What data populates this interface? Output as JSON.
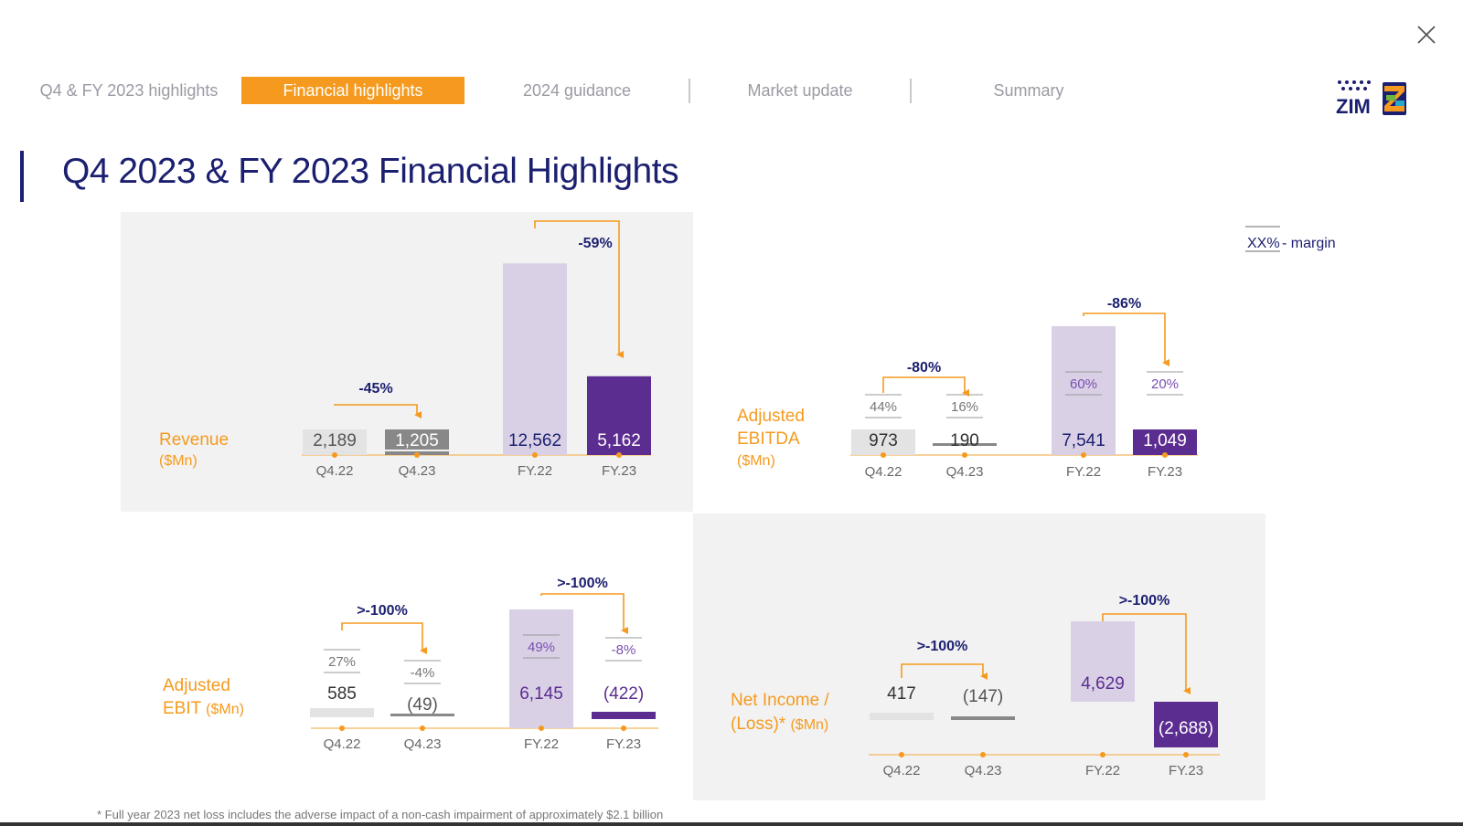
{
  "tabs": [
    {
      "label": "Q4 & FY 2023 highlights",
      "active": false
    },
    {
      "label": "Financial highlights",
      "active": true
    },
    {
      "label": "2024 guidance",
      "active": false
    },
    {
      "label": "Market update",
      "active": false
    },
    {
      "label": "Summary",
      "active": false
    }
  ],
  "logo_text": "ZIM",
  "page_title": "Q4 2023 & FY 2023 Financial Highlights",
  "legend": {
    "xx": "XX%",
    "text": " - margin"
  },
  "footnote": "* Full year 2023 net loss includes the adverse impact of a non-cash impairment of approximately $2.1 billion",
  "colors": {
    "accent_orange": "#f59a1e",
    "navy": "#1b1f6f",
    "purple": "#5c2d91",
    "light_purple": "#d9d0e6",
    "grey": "#888888",
    "light_grey": "#e3e3e3"
  },
  "chart_data": [
    {
      "type": "bar",
      "title": "Revenue",
      "unit": "($Mn)",
      "categories": [
        "Q4.22",
        "Q4.23",
        "FY.22",
        "FY.23"
      ],
      "values": [
        2189,
        1205,
        12562,
        5162
      ],
      "labels": [
        "2,189",
        "1,205",
        "12,562",
        "5,162"
      ],
      "changes": [
        {
          "from": "Q4.22",
          "to": "Q4.23",
          "label": "-45%"
        },
        {
          "from": "FY.22",
          "to": "FY.23",
          "label": "-59%"
        }
      ]
    },
    {
      "type": "bar",
      "title": "Adjusted EBITDA",
      "unit": "($Mn)",
      "categories": [
        "Q4.22",
        "Q4.23",
        "FY.22",
        "FY.23"
      ],
      "values": [
        973,
        190,
        7541,
        1049
      ],
      "labels": [
        "973",
        "190",
        "7,541",
        "1,049"
      ],
      "margins": [
        "44%",
        "16%",
        "60%",
        "20%"
      ],
      "changes": [
        {
          "from": "Q4.22",
          "to": "Q4.23",
          "label": "-80%"
        },
        {
          "from": "FY.22",
          "to": "FY.23",
          "label": "-86%"
        }
      ]
    },
    {
      "type": "bar",
      "title": "Adjusted EBIT",
      "unit": "($Mn)",
      "categories": [
        "Q4.22",
        "Q4.23",
        "FY.22",
        "FY.23"
      ],
      "values": [
        585,
        -49,
        6145,
        -422
      ],
      "labels": [
        "585",
        "(49)",
        "6,145",
        "(422)"
      ],
      "margins": [
        "27%",
        "-4%",
        "49%",
        "-8%"
      ],
      "changes": [
        {
          "from": "Q4.22",
          "to": "Q4.23",
          "label": ">-100%"
        },
        {
          "from": "FY.22",
          "to": "FY.23",
          "label": ">-100%"
        }
      ]
    },
    {
      "type": "bar",
      "title": "Net Income / (Loss)*",
      "unit": "($Mn)",
      "categories": [
        "Q4.22",
        "Q4.23",
        "FY.22",
        "FY.23"
      ],
      "values": [
        417,
        -147,
        4629,
        -2688
      ],
      "labels": [
        "417",
        "(147)",
        "4,629",
        "(2,688)"
      ],
      "changes": [
        {
          "from": "Q4.22",
          "to": "Q4.23",
          "label": ">-100%"
        },
        {
          "from": "FY.22",
          "to": "FY.23",
          "label": ">-100%"
        }
      ]
    }
  ]
}
